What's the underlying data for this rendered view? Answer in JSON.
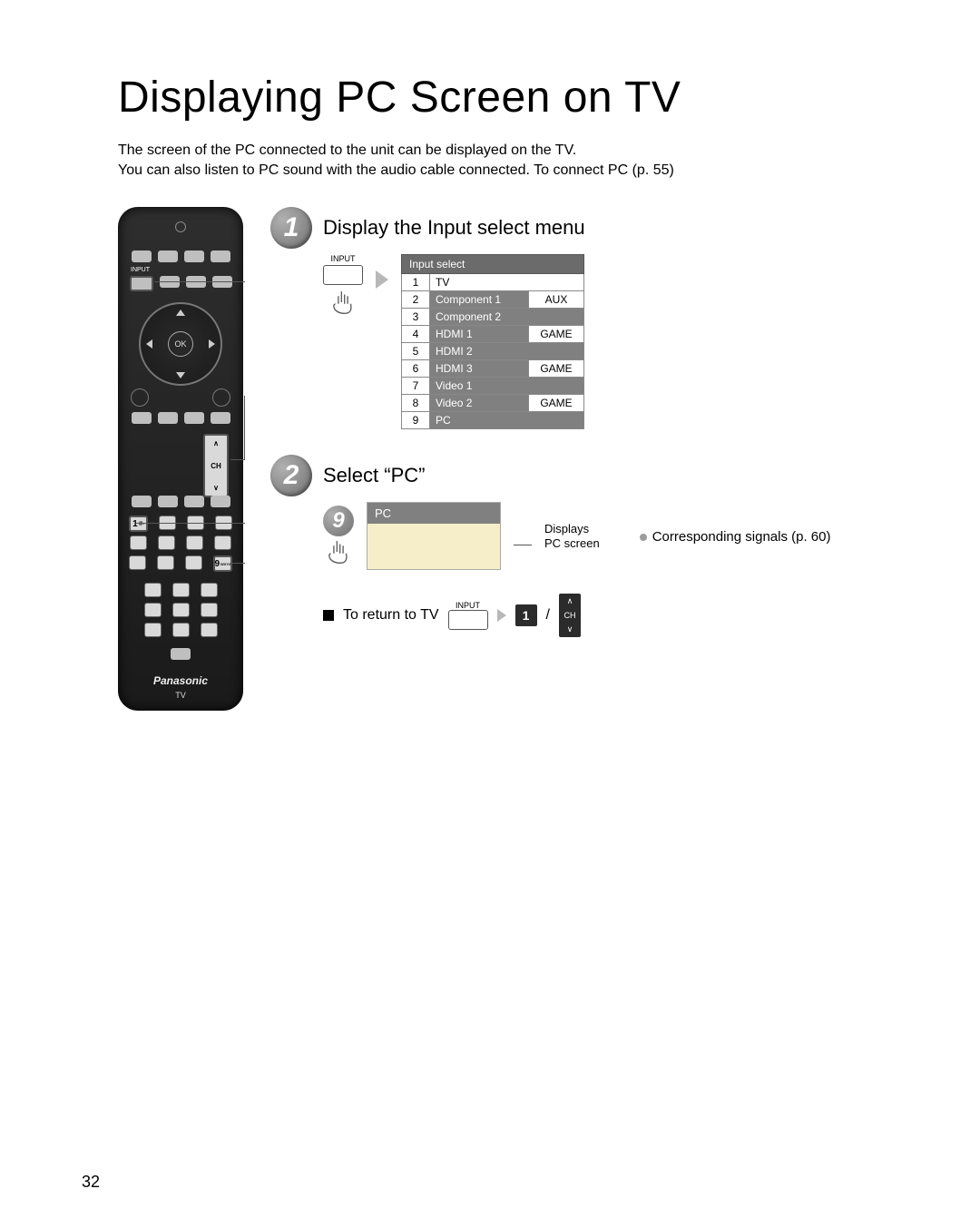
{
  "title": "Displaying PC Screen on TV",
  "intro_line1": "The screen of the PC connected to the unit can be displayed on the TV.",
  "intro_line2": "You can also listen to PC sound with the audio cable connected. To connect PC (p. 55)",
  "step1": {
    "title": "Display the Input select menu",
    "input_label": "INPUT",
    "menu_header": "Input select",
    "rows": [
      {
        "n": "1",
        "name": "TV",
        "light": true,
        "tag": ""
      },
      {
        "n": "2",
        "name": "Component 1",
        "light": false,
        "tag": "AUX"
      },
      {
        "n": "3",
        "name": "Component 2",
        "light": false,
        "tag": ""
      },
      {
        "n": "4",
        "name": "HDMI 1",
        "light": false,
        "tag": "GAME"
      },
      {
        "n": "5",
        "name": "HDMI 2",
        "light": false,
        "tag": ""
      },
      {
        "n": "6",
        "name": "HDMI 3",
        "light": false,
        "tag": "GAME"
      },
      {
        "n": "7",
        "name": "Video 1",
        "light": false,
        "tag": ""
      },
      {
        "n": "8",
        "name": "Video 2",
        "light": false,
        "tag": "GAME"
      },
      {
        "n": "9",
        "name": "PC",
        "light": false,
        "tag": ""
      }
    ]
  },
  "step2": {
    "title": "Select “PC”",
    "key": "9",
    "pc_label": "PC",
    "displays1": "Displays",
    "displays2": "PC screen",
    "note": "Corresponding signals (p. 60)"
  },
  "return": {
    "label": "To return to TV",
    "input_label": "INPUT",
    "key1": "1",
    "slash": "/",
    "ch": "CH"
  },
  "remote": {
    "ok": "OK",
    "input": "INPUT",
    "ch": "CH",
    "brand": "Panasonic",
    "tv": "TV",
    "key1": "1",
    "key1sub": "@.",
    "key9": "9",
    "key9sub": "WXYZ"
  },
  "page_number": "32",
  "colors": {
    "badge_grad_a": "#b0b0b0",
    "badge_grad_b": "#6f6f6f",
    "menu_hdr": "#6b6b6b",
    "menu_cell": "#808080",
    "pc_body": "#f5eec8"
  }
}
